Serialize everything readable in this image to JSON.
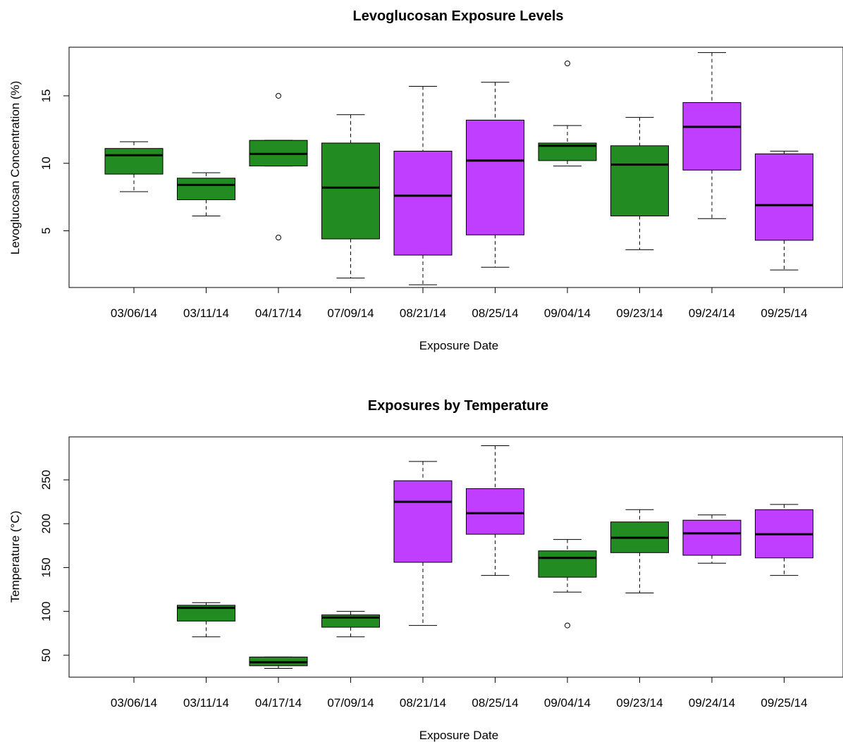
{
  "chart_data": [
    {
      "type": "boxplot",
      "title": "Levoglucosan Exposure Levels",
      "xlabel": "Exposure Date",
      "ylabel": "Levoglucosan Concentration (%)",
      "categories": [
        "03/06/14",
        "03/11/14",
        "04/17/14",
        "07/09/14",
        "08/21/14",
        "08/25/14",
        "09/04/14",
        "09/23/14",
        "09/24/14",
        "09/25/14"
      ],
      "yticks": [
        5,
        10,
        15
      ],
      "ylim": [
        0.8,
        18.6
      ],
      "colors": [
        "#228B22",
        "#228B22",
        "#228B22",
        "#228B22",
        "#BF3EFF",
        "#BF3EFF",
        "#228B22",
        "#228B22",
        "#BF3EFF",
        "#BF3EFF"
      ],
      "boxes": [
        {
          "min": 7.9,
          "q1": 9.2,
          "median": 10.6,
          "q3": 11.1,
          "max": 11.6,
          "outliers": []
        },
        {
          "min": 6.1,
          "q1": 7.3,
          "median": 8.4,
          "q3": 8.9,
          "max": 9.3,
          "outliers": []
        },
        {
          "min": 9.8,
          "q1": 9.8,
          "median": 10.7,
          "q3": 11.7,
          "max": 11.7,
          "outliers": [
            15.0,
            4.5
          ]
        },
        {
          "min": 1.5,
          "q1": 4.4,
          "median": 8.2,
          "q3": 11.5,
          "max": 13.6,
          "outliers": []
        },
        {
          "min": 1.0,
          "q1": 3.2,
          "median": 7.6,
          "q3": 10.9,
          "max": 15.7,
          "outliers": []
        },
        {
          "min": 2.3,
          "q1": 4.7,
          "median": 10.2,
          "q3": 13.2,
          "max": 16.0,
          "outliers": []
        },
        {
          "min": 9.8,
          "q1": 10.2,
          "median": 11.3,
          "q3": 11.5,
          "max": 12.8,
          "outliers": [
            17.4
          ]
        },
        {
          "min": 3.6,
          "q1": 6.1,
          "median": 9.9,
          "q3": 11.3,
          "max": 13.4,
          "outliers": []
        },
        {
          "min": 5.9,
          "q1": 9.5,
          "median": 12.7,
          "q3": 14.5,
          "max": 18.2,
          "outliers": []
        },
        {
          "min": 2.1,
          "q1": 4.3,
          "median": 6.9,
          "q3": 10.7,
          "max": 10.9,
          "outliers": []
        }
      ]
    },
    {
      "type": "boxplot",
      "title": "Exposures by Temperature",
      "xlabel": "Exposure Date",
      "ylabel": "Temperature (°C)",
      "categories": [
        "03/06/14",
        "03/11/14",
        "04/17/14",
        "07/09/14",
        "08/21/14",
        "08/25/14",
        "09/04/14",
        "09/23/14",
        "09/24/14",
        "09/25/14"
      ],
      "yticks": [
        50,
        100,
        150,
        200,
        250
      ],
      "ylim": [
        25,
        299
      ],
      "colors": [
        "#228B22",
        "#228B22",
        "#228B22",
        "#228B22",
        "#BF3EFF",
        "#BF3EFF",
        "#228B22",
        "#228B22",
        "#BF3EFF",
        "#BF3EFF"
      ],
      "boxes": [
        null,
        {
          "min": 71,
          "q1": 89,
          "median": 104,
          "q3": 107,
          "max": 110,
          "outliers": []
        },
        {
          "min": 35,
          "q1": 38,
          "median": 42,
          "q3": 48,
          "max": 48,
          "outliers": []
        },
        {
          "min": 71,
          "q1": 82,
          "median": 93,
          "q3": 96,
          "max": 100,
          "outliers": []
        },
        {
          "min": 84,
          "q1": 156,
          "median": 225,
          "q3": 249,
          "max": 271,
          "outliers": []
        },
        {
          "min": 141,
          "q1": 188,
          "median": 212,
          "q3": 240,
          "max": 289,
          "outliers": []
        },
        {
          "min": 122,
          "q1": 139,
          "median": 161,
          "q3": 169,
          "max": 182,
          "outliers": [
            84
          ]
        },
        {
          "min": 121,
          "q1": 167,
          "median": 184,
          "q3": 202,
          "max": 216,
          "outliers": []
        },
        {
          "min": 155,
          "q1": 164,
          "median": 189,
          "q3": 204,
          "max": 210,
          "outliers": []
        },
        {
          "min": 141,
          "q1": 161,
          "median": 188,
          "q3": 216,
          "max": 222,
          "outliers": []
        }
      ]
    }
  ]
}
